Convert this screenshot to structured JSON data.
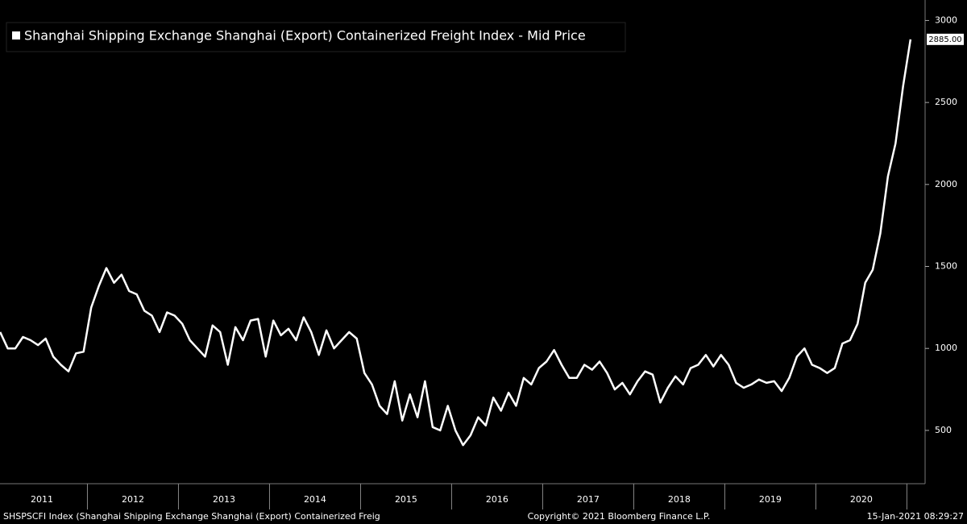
{
  "chart_data": {
    "type": "line",
    "title": "Shanghai Shipping Exchange Shanghai (Export) Containerized Freight Index - Mid Price",
    "x": [
      2011.042,
      2011.125,
      2011.208,
      2011.292,
      2011.375,
      2011.458,
      2011.542,
      2011.625,
      2011.708,
      2011.792,
      2011.875,
      2011.958,
      2012.042,
      2012.125,
      2012.208,
      2012.292,
      2012.375,
      2012.458,
      2012.542,
      2012.625,
      2012.708,
      2012.792,
      2012.875,
      2012.958,
      2013.042,
      2013.125,
      2013.208,
      2013.292,
      2013.375,
      2013.458,
      2013.542,
      2013.625,
      2013.708,
      2013.792,
      2013.875,
      2013.958,
      2014.042,
      2014.125,
      2014.208,
      2014.292,
      2014.375,
      2014.458,
      2014.542,
      2014.625,
      2014.708,
      2014.792,
      2014.875,
      2014.958,
      2015.042,
      2015.125,
      2015.208,
      2015.292,
      2015.375,
      2015.458,
      2015.542,
      2015.625,
      2015.708,
      2015.792,
      2015.875,
      2015.958,
      2016.042,
      2016.125,
      2016.208,
      2016.292,
      2016.375,
      2016.458,
      2016.542,
      2016.625,
      2016.708,
      2016.792,
      2016.875,
      2016.958,
      2017.042,
      2017.125,
      2017.208,
      2017.292,
      2017.375,
      2017.458,
      2017.542,
      2017.625,
      2017.708,
      2017.792,
      2017.875,
      2017.958,
      2018.042,
      2018.125,
      2018.208,
      2018.292,
      2018.375,
      2018.458,
      2018.542,
      2018.625,
      2018.708,
      2018.792,
      2018.875,
      2018.958,
      2019.042,
      2019.125,
      2019.208,
      2019.292,
      2019.375,
      2019.458,
      2019.542,
      2019.625,
      2019.708,
      2019.792,
      2019.875,
      2019.958,
      2020.042,
      2020.125,
      2020.208,
      2020.292,
      2020.375,
      2020.458,
      2020.542,
      2020.625,
      2020.708,
      2020.792,
      2020.875,
      2020.958,
      2021.04
    ],
    "series": [
      {
        "name": "Shanghai Shipping Exchange Shanghai (Export) Containerized Freight Index - Mid Price",
        "color": "#ffffff",
        "values": [
          1100,
          1000,
          1000,
          1070,
          1050,
          1020,
          1060,
          950,
          900,
          860,
          970,
          980,
          1250,
          1380,
          1490,
          1400,
          1450,
          1350,
          1330,
          1230,
          1200,
          1100,
          1220,
          1200,
          1150,
          1050,
          1000,
          950,
          1140,
          1100,
          900,
          1130,
          1050,
          1170,
          1180,
          950,
          1170,
          1080,
          1120,
          1050,
          1190,
          1100,
          960,
          1110,
          1000,
          1050,
          1100,
          1060,
          850,
          780,
          650,
          600,
          800,
          560,
          720,
          580,
          800,
          520,
          500,
          650,
          500,
          410,
          470,
          580,
          530,
          700,
          620,
          730,
          650,
          820,
          780,
          880,
          920,
          990,
          900,
          820,
          820,
          900,
          870,
          920,
          850,
          750,
          790,
          720,
          800,
          860,
          840,
          670,
          760,
          830,
          780,
          880,
          900,
          960,
          890,
          960,
          900,
          790,
          760,
          780,
          810,
          790,
          800,
          740,
          820,
          950,
          1000,
          900,
          880,
          850,
          880,
          1030,
          1050,
          1150,
          1400,
          1480,
          1700,
          2050,
          2250,
          2600,
          2885
        ]
      }
    ],
    "last_value": {
      "value": 2885,
      "label": "2885.00"
    },
    "xlim": [
      2011.04,
      2021.2
    ],
    "ylim": [
      175,
      3125
    ],
    "yticks": [
      500,
      1000,
      1500,
      2000,
      2500,
      3000
    ],
    "xticks": [
      {
        "value": 2011.5,
        "label": "2011"
      },
      {
        "value": 2012.5,
        "label": "2012"
      },
      {
        "value": 2013.5,
        "label": "2013"
      },
      {
        "value": 2014.5,
        "label": "2014"
      },
      {
        "value": 2015.5,
        "label": "2015"
      },
      {
        "value": 2016.5,
        "label": "2016"
      },
      {
        "value": 2017.5,
        "label": "2017"
      },
      {
        "value": 2018.5,
        "label": "2018"
      },
      {
        "value": 2019.5,
        "label": "2019"
      },
      {
        "value": 2020.5,
        "label": "2020"
      }
    ],
    "x_separators": [
      2012,
      2013,
      2014,
      2015,
      2016,
      2017,
      2018,
      2019,
      2020,
      2021
    ],
    "footer": {
      "left": "SHSPSCFI Index (Shanghai Shipping Exchange Shanghai (Export) Containerized Freig",
      "center": "Copyright© 2021 Bloomberg Finance L.P.",
      "right": "15-Jan-2021 08:29:27"
    }
  }
}
